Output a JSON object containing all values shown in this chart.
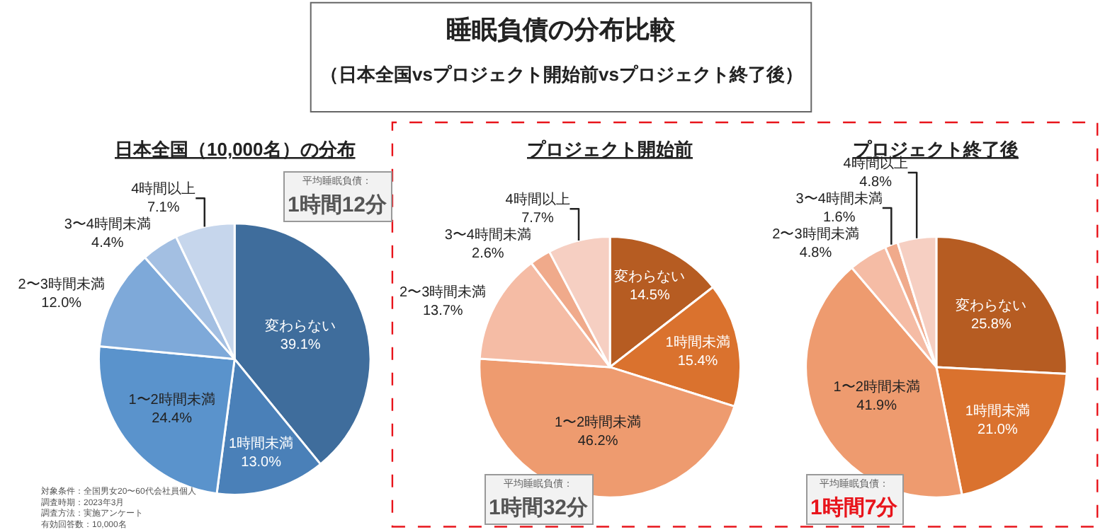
{
  "chart_data": [
    {
      "type": "other",
      "title": "睡眠負債の分布比較",
      "subtitle": "（日本全国vsプロジェクト開始前vsプロジェクト終了後）",
      "annotations": [
        "対象条件：全国男女20〜60代会社員個人",
        "調査時期：2023年3月",
        "調査方法：実施アンケート",
        "有効回答数：10,000名"
      ]
    },
    {
      "type": "pie",
      "title": "日本全国（10,000名）の分布",
      "categories": [
        "変わらない",
        "1時間未満",
        "1〜2時間未満",
        "2〜3時間未満",
        "3〜4時間未満",
        "4時間以上"
      ],
      "values": [
        39.1,
        13.0,
        24.4,
        12.0,
        4.4,
        7.1
      ],
      "value_labels": [
        "39.1%",
        "13.0%",
        "24.4%",
        "12.0%",
        "4.4%",
        "7.1%"
      ],
      "colors": [
        "#3f6d9c",
        "#4a80b8",
        "#5a93cc",
        "#7ea9d9",
        "#a3bfe2",
        "#c6d6ec"
      ],
      "annotations": [
        "平均睡眠負債：",
        "1時間12分"
      ]
    },
    {
      "type": "pie",
      "title": "プロジェクト開始前",
      "categories": [
        "変わらない",
        "1時間未満",
        "1〜2時間未満",
        "2〜3時間未満",
        "3〜4時間未満",
        "4時間以上"
      ],
      "values": [
        14.5,
        15.4,
        46.2,
        13.7,
        2.6,
        7.7
      ],
      "value_labels": [
        "14.5%",
        "15.4%",
        "46.2%",
        "13.7%",
        "2.6%",
        "7.7%"
      ],
      "colors": [
        "#b65c22",
        "#da722e",
        "#ee9b6f",
        "#f5bca5",
        "#f0aa8b",
        "#f6cfc2"
      ],
      "annotations": [
        "平均睡眠負債：",
        "1時間32分"
      ]
    },
    {
      "type": "pie",
      "title": "プロジェクト終了後",
      "categories": [
        "変わらない",
        "1時間未満",
        "1〜2時間未満",
        "2〜3時間未満",
        "3〜4時間未満",
        "4時間以上"
      ],
      "values": [
        25.8,
        21.0,
        41.9,
        4.8,
        1.6,
        4.8
      ],
      "value_labels": [
        "25.8%",
        "21.0%",
        "41.9%",
        "4.8%",
        "1.6%",
        "4.8%"
      ],
      "colors": [
        "#b65c22",
        "#da722e",
        "#ee9b6f",
        "#f5bca5",
        "#f0aa8b",
        "#f6cfc2"
      ],
      "annotations": [
        "平均睡眠負債：",
        "1時間7分"
      ]
    }
  ]
}
